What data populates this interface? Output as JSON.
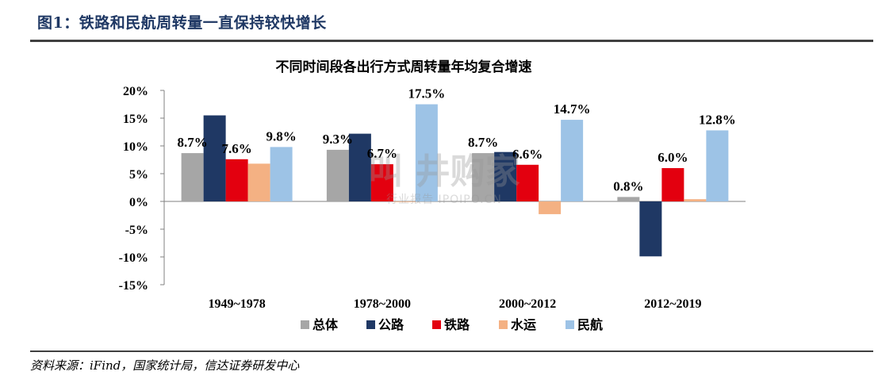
{
  "figure_title": "图1：铁路和民航周转量一直保持较快增长",
  "source_note": "资料来源：iFind，国家统计局，信达证券研发中心",
  "watermark": {
    "main": "叫 井购家",
    "sub": "行业报告 IPOIPO.CN"
  },
  "chart_data": {
    "type": "bar",
    "title": "不同时间段各出行方式周转量年均复合增速",
    "categories": [
      "1949~1978",
      "1978~2000",
      "2000~2012",
      "2012~2019"
    ],
    "series": [
      {
        "name": "总体",
        "color": "#a6a6a6",
        "values": [
          8.7,
          9.3,
          8.7,
          0.8
        ]
      },
      {
        "name": "公路",
        "color": "#1f3864",
        "values": [
          15.5,
          12.2,
          8.9,
          -9.9
        ]
      },
      {
        "name": "铁路",
        "color": "#e3000f",
        "values": [
          7.6,
          6.7,
          6.6,
          6.0
        ]
      },
      {
        "name": "水运",
        "color": "#f4b183",
        "values": [
          6.8,
          -0.1,
          -2.3,
          0.4
        ]
      },
      {
        "name": "民航",
        "color": "#9dc3e6",
        "values": [
          9.8,
          17.5,
          14.7,
          12.8
        ]
      }
    ],
    "data_labels": [
      {
        "category": "1949~1978",
        "series": "总体",
        "text": "8.7%"
      },
      {
        "category": "1949~1978",
        "series": "铁路",
        "text": "7.6%"
      },
      {
        "category": "1949~1978",
        "series": "民航",
        "text": "9.8%"
      },
      {
        "category": "1978~2000",
        "series": "总体",
        "text": "9.3%"
      },
      {
        "category": "1978~2000",
        "series": "铁路",
        "text": "6.7%"
      },
      {
        "category": "1978~2000",
        "series": "民航",
        "text": "17.5%"
      },
      {
        "category": "2000~2012",
        "series": "总体",
        "text": "8.7%"
      },
      {
        "category": "2000~2012",
        "series": "铁路",
        "text": "6.6%"
      },
      {
        "category": "2000~2012",
        "series": "民航",
        "text": "14.7%"
      },
      {
        "category": "2012~2019",
        "series": "总体",
        "text": "0.8%"
      },
      {
        "category": "2012~2019",
        "series": "铁路",
        "text": "6.0%"
      },
      {
        "category": "2012~2019",
        "series": "民航",
        "text": "12.8%"
      }
    ],
    "ylim": [
      -15,
      20
    ],
    "yticks": [
      20,
      15,
      10,
      5,
      0,
      -5,
      -10,
      -15
    ],
    "ytick_labels": [
      "20%",
      "15%",
      "10%",
      "5%",
      "0%",
      "-5%",
      "-10%",
      "-15%"
    ],
    "legend_position": "bottom",
    "grid": false
  }
}
